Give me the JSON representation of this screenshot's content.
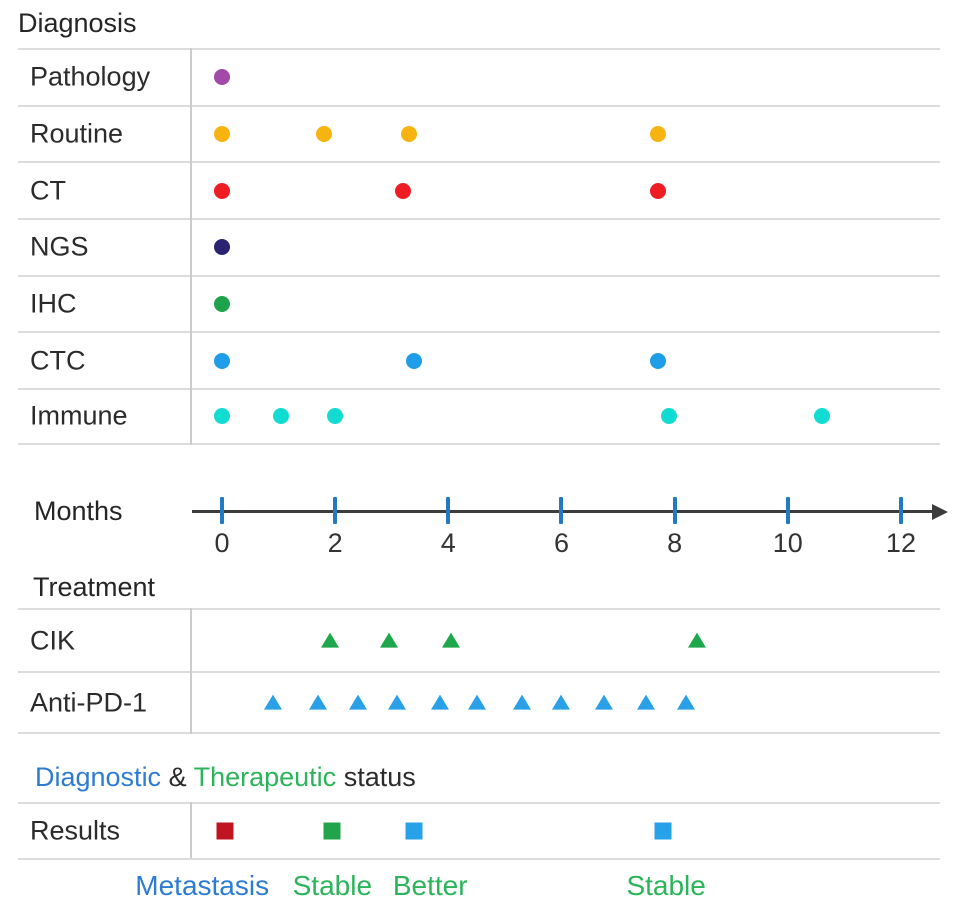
{
  "chart_data": {
    "type": "scatter",
    "x_axis": {
      "label": "Months",
      "ticks": [
        0,
        2,
        4,
        6,
        8,
        10,
        12
      ],
      "range": [
        0,
        12
      ],
      "tick_color": "#2479c4",
      "line_color": "#3c3c3c"
    },
    "diagnosis": {
      "title": "Diagnosis",
      "rows": [
        {
          "label": "Pathology",
          "marker": "circle",
          "color": "#a24aa9",
          "months": [
            0
          ]
        },
        {
          "label": "Routine",
          "marker": "circle",
          "color": "#f7b410",
          "months": [
            0,
            1.8,
            3.3,
            7.7
          ]
        },
        {
          "label": "CT",
          "marker": "circle",
          "color": "#ee1d23",
          "months": [
            0,
            3.2,
            7.7
          ]
        },
        {
          "label": "NGS",
          "marker": "circle",
          "color": "#2b2371",
          "months": [
            0
          ]
        },
        {
          "label": "IHC",
          "marker": "circle",
          "color": "#1fa44c",
          "months": [
            0
          ]
        },
        {
          "label": "CTC",
          "marker": "circle",
          "color": "#1e9de9",
          "months": [
            0,
            3.4,
            7.7
          ]
        },
        {
          "label": "Immune",
          "marker": "circle",
          "color": "#12dcd2",
          "months": [
            0,
            1.05,
            2.0,
            7.9,
            10.6
          ]
        }
      ]
    },
    "treatment": {
      "title": "Treatment",
      "rows": [
        {
          "label": "CIK",
          "marker": "triangle",
          "color": "#1fa84b",
          "months": [
            1.9,
            2.95,
            4.05,
            8.4
          ]
        },
        {
          "label": "Anti-PD-1",
          "marker": "triangle",
          "color": "#29a0e8",
          "months": [
            0.9,
            1.7,
            2.4,
            3.1,
            3.85,
            4.5,
            5.3,
            6.0,
            6.75,
            7.5,
            8.2
          ]
        }
      ]
    },
    "status_heading": {
      "segments": [
        {
          "text": "Diagnostic",
          "color": "#2d7cd1"
        },
        {
          "text": " & ",
          "color": "#2b2b2b"
        },
        {
          "text": "Therapeutic",
          "color": "#2cb45a"
        },
        {
          "text": " status",
          "color": "#2b2b2b"
        }
      ]
    },
    "results": {
      "label": "Results",
      "markers": [
        {
          "month": 0.05,
          "color": "#c01420"
        },
        {
          "month": 1.95,
          "color": "#21a44c"
        },
        {
          "month": 3.4,
          "color": "#27a2e9"
        },
        {
          "month": 7.8,
          "color": "#27a2e9"
        }
      ]
    },
    "outcome_labels": [
      {
        "text": "Metastasis",
        "month": -0.35,
        "color": "#2d7cd1"
      },
      {
        "text": "Stable",
        "month": 1.95,
        "color": "#2cb45a"
      },
      {
        "text": "Better",
        "month": 3.68,
        "color": "#2cb45a"
      },
      {
        "text": "Stable",
        "month": 7.85,
        "color": "#2cb45a"
      }
    ]
  }
}
